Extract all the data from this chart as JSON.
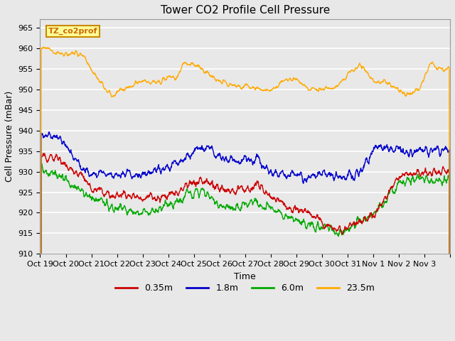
{
  "title": "Tower CO2 Profile Cell Pressure",
  "xlabel": "Time",
  "ylabel": "Cell Pressure (mBar)",
  "ylim": [
    910,
    967
  ],
  "xlim": [
    0,
    16
  ],
  "yticks": [
    910,
    915,
    920,
    925,
    930,
    935,
    940,
    945,
    950,
    955,
    960,
    965
  ],
  "bg_color": "#e8e8e8",
  "series_colors": [
    "#cc0000",
    "#0000cc",
    "#00aa00",
    "#ffaa00"
  ],
  "series_labels": [
    "0.35m",
    "1.8m",
    "6.0m",
    "23.5m"
  ],
  "legend_label": "TZ_co2prof",
  "legend_text_color": "#cc6600",
  "legend_bg": "#ffff99",
  "legend_border": "#cc8800",
  "xticklabels": [
    "Oct 19",
    "Oct 20",
    "Oct 21",
    "Oct 22",
    "Oct 23",
    "Oct 24",
    "Oct 25",
    "Oct 26",
    "Oct 27",
    "Oct 28",
    "Oct 29",
    "Oct 30",
    "Oct 31",
    "Nov 1",
    "Nov 2",
    "Nov 3",
    ""
  ],
  "n_days": 16,
  "title_fontsize": 11,
  "axis_label_fontsize": 9,
  "tick_fontsize": 8,
  "line_width": 1.0,
  "figwidth": 6.4,
  "figheight": 4.8,
  "dpi": 100
}
